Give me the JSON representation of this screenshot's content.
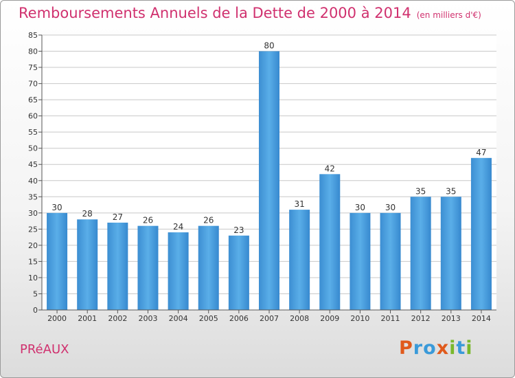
{
  "title": "Remboursements Annuels de la Dette de 2000 à 2014",
  "unit": "(en milliers d'€)",
  "commune": "PRéAUX",
  "logo": {
    "text": "Proxiti",
    "colors": [
      "#e05a1c",
      "#3a9ad9",
      "#3a9ad9",
      "#e05a1c",
      "#7ab82c",
      "#3a9ad9",
      "#7ab82c"
    ]
  },
  "colors": {
    "bar": "#3f95d8",
    "bar_light": "#6cb8ee",
    "title": "#d0306e",
    "grid": "#c8c8c8"
  },
  "chart_data": {
    "type": "bar",
    "categories": [
      "2000",
      "2001",
      "2002",
      "2003",
      "2004",
      "2005",
      "2006",
      "2007",
      "2008",
      "2009",
      "2010",
      "2011",
      "2012",
      "2013",
      "2014"
    ],
    "values": [
      30,
      28,
      27,
      26,
      24,
      26,
      23,
      80,
      31,
      42,
      30,
      30,
      35,
      35,
      47
    ],
    "ylim": [
      0,
      85
    ],
    "yticks": [
      0,
      5,
      10,
      15,
      20,
      25,
      30,
      35,
      40,
      45,
      50,
      55,
      60,
      65,
      70,
      75,
      80,
      85
    ],
    "grid": true
  }
}
